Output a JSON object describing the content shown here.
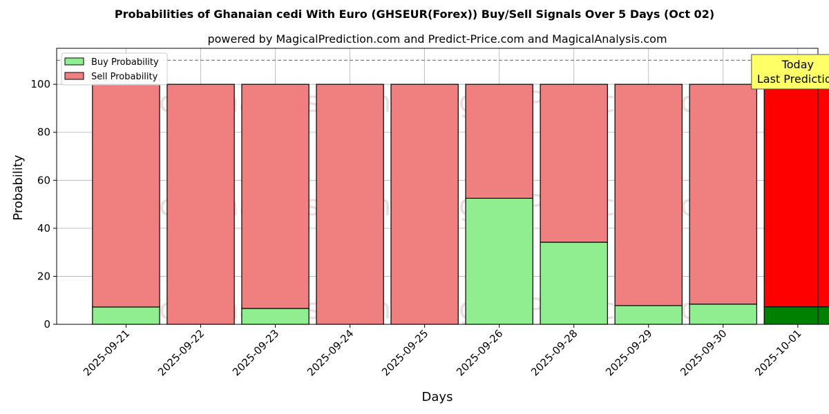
{
  "chart_data": {
    "type": "bar",
    "stacked": true,
    "title": "Probabilities of Ghanaian cedi With Euro (GHSEUR(Forex)) Buy/Sell Signals Over 5 Days (Oct 02)",
    "subtitle": "powered by MagicalPrediction.com and Predict-Price.com and MagicalAnalysis.com",
    "xlabel": "Days",
    "ylabel": "Probability",
    "ylim": [
      0,
      115
    ],
    "yticks": [
      0,
      20,
      40,
      60,
      80,
      100
    ],
    "reference_line": 110,
    "grid": true,
    "legend_position": "top-left",
    "categories": [
      "2025-09-21",
      "2025-09-22",
      "2025-09-23",
      "2025-09-24",
      "2025-09-25",
      "2025-09-26",
      "2025-09-28",
      "2025-09-29",
      "2025-09-30",
      "2025-10-01"
    ],
    "series": [
      {
        "name": "Buy Probability",
        "color": "#90ee90",
        "values": [
          7.2,
          0,
          6.6,
          0,
          0,
          52.5,
          34.2,
          7.8,
          8.4,
          7.3
        ]
      },
      {
        "name": "Sell Probability",
        "color": "#f08080",
        "values": [
          92.8,
          100,
          93.4,
          100,
          100,
          47.5,
          65.8,
          92.2,
          91.6,
          92.7
        ]
      }
    ],
    "highlight": {
      "index": 9,
      "buy_color": "#008000",
      "sell_color": "#ff0000"
    },
    "annotation": {
      "line1": "Today",
      "line2": "Last Prediction",
      "color": "#ffff66"
    },
    "watermarks": [
      "MagicalAnalysis.com",
      "MagicalPrediction.com"
    ]
  }
}
